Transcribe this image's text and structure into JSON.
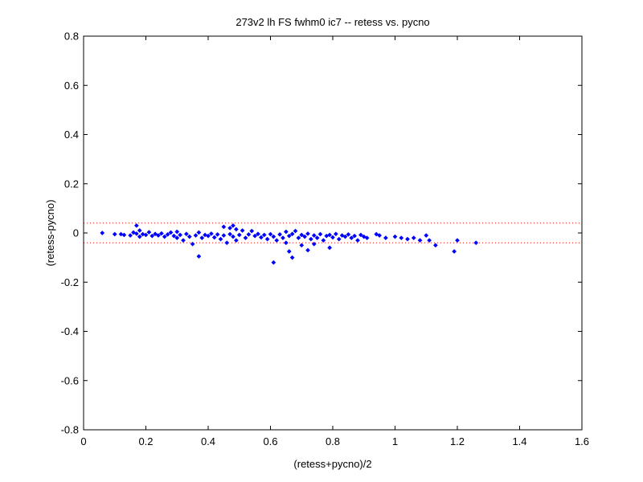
{
  "chart_data": {
    "type": "scatter",
    "title": "273v2 lh FS fwhm0 ic7 -- retess vs. pycno",
    "xlabel": "(retess+pycno)/2",
    "ylabel": "(retess-pycno)",
    "xlim": [
      0,
      1.6
    ],
    "ylim": [
      -0.8,
      0.8
    ],
    "xticks": [
      0,
      0.2,
      0.4,
      0.6,
      0.8,
      1,
      1.2,
      1.4,
      1.6
    ],
    "yticks": [
      -0.8,
      -0.6,
      -0.4,
      -0.2,
      0,
      0.2,
      0.4,
      0.6,
      0.8
    ],
    "xtick_labels": [
      "0",
      "0.2",
      "0.4",
      "0.6",
      "0.8",
      "1",
      "1.2",
      "1.4",
      "1.6"
    ],
    "ytick_labels": [
      "-0.8",
      "-0.6",
      "-0.4",
      "-0.2",
      "0",
      "0.2",
      "0.4",
      "0.6",
      "0.8"
    ],
    "grid": false,
    "marker_color": "#0000ff",
    "reference_line_color": "#ff0000",
    "reference_lines": [
      0.04,
      -0.04
    ],
    "series": [
      {
        "points": [
          [
            0.06,
            0.0
          ],
          [
            0.1,
            -0.005
          ],
          [
            0.12,
            -0.005
          ],
          [
            0.13,
            -0.008
          ],
          [
            0.15,
            -0.01
          ],
          [
            0.16,
            0.002
          ],
          [
            0.17,
            -0.003
          ],
          [
            0.17,
            0.03
          ],
          [
            0.18,
            0.01
          ],
          [
            0.18,
            -0.015
          ],
          [
            0.19,
            -0.005
          ],
          [
            0.2,
            -0.008
          ],
          [
            0.21,
            0.003
          ],
          [
            0.22,
            -0.012
          ],
          [
            0.23,
            -0.004
          ],
          [
            0.24,
            -0.01
          ],
          [
            0.25,
            -0.002
          ],
          [
            0.26,
            -0.015
          ],
          [
            0.27,
            -0.006
          ],
          [
            0.28,
            0.002
          ],
          [
            0.29,
            -0.012
          ],
          [
            0.3,
            -0.02
          ],
          [
            0.3,
            0.005
          ],
          [
            0.31,
            -0.008
          ],
          [
            0.32,
            -0.03
          ],
          [
            0.33,
            -0.004
          ],
          [
            0.34,
            -0.015
          ],
          [
            0.35,
            -0.045
          ],
          [
            0.36,
            -0.01
          ],
          [
            0.37,
            -0.095
          ],
          [
            0.37,
            0.002
          ],
          [
            0.38,
            -0.02
          ],
          [
            0.39,
            -0.008
          ],
          [
            0.4,
            -0.012
          ],
          [
            0.41,
            -0.003
          ],
          [
            0.42,
            -0.018
          ],
          [
            0.43,
            -0.006
          ],
          [
            0.44,
            -0.025
          ],
          [
            0.45,
            0.025
          ],
          [
            0.45,
            -0.01
          ],
          [
            0.46,
            -0.04
          ],
          [
            0.47,
            0.02
          ],
          [
            0.47,
            -0.005
          ],
          [
            0.48,
            0.03
          ],
          [
            0.48,
            -0.015
          ],
          [
            0.49,
            0.015
          ],
          [
            0.49,
            -0.03
          ],
          [
            0.5,
            -0.008
          ],
          [
            0.51,
            0.01
          ],
          [
            0.52,
            -0.02
          ],
          [
            0.53,
            -0.006
          ],
          [
            0.54,
            0.008
          ],
          [
            0.55,
            -0.012
          ],
          [
            0.56,
            -0.004
          ],
          [
            0.57,
            -0.018
          ],
          [
            0.58,
            -0.008
          ],
          [
            0.59,
            -0.025
          ],
          [
            0.6,
            -0.005
          ],
          [
            0.61,
            -0.12
          ],
          [
            0.61,
            -0.015
          ],
          [
            0.62,
            -0.03
          ],
          [
            0.63,
            -0.006
          ],
          [
            0.64,
            -0.02
          ],
          [
            0.65,
            -0.04
          ],
          [
            0.65,
            0.005
          ],
          [
            0.66,
            -0.075
          ],
          [
            0.66,
            -0.012
          ],
          [
            0.67,
            -0.1
          ],
          [
            0.67,
            -0.004
          ],
          [
            0.68,
            0.008
          ],
          [
            0.69,
            -0.02
          ],
          [
            0.7,
            -0.05
          ],
          [
            0.7,
            -0.008
          ],
          [
            0.71,
            -0.015
          ],
          [
            0.72,
            -0.07
          ],
          [
            0.72,
            -0.003
          ],
          [
            0.73,
            -0.025
          ],
          [
            0.74,
            -0.045
          ],
          [
            0.74,
            -0.01
          ],
          [
            0.75,
            -0.02
          ],
          [
            0.76,
            -0.005
          ],
          [
            0.77,
            -0.03
          ],
          [
            0.78,
            -0.012
          ],
          [
            0.79,
            -0.06
          ],
          [
            0.79,
            -0.008
          ],
          [
            0.8,
            -0.018
          ],
          [
            0.81,
            -0.004
          ],
          [
            0.82,
            -0.025
          ],
          [
            0.83,
            -0.01
          ],
          [
            0.84,
            -0.015
          ],
          [
            0.85,
            -0.006
          ],
          [
            0.86,
            -0.02
          ],
          [
            0.87,
            -0.012
          ],
          [
            0.88,
            -0.03
          ],
          [
            0.89,
            -0.008
          ],
          [
            0.9,
            -0.015
          ],
          [
            0.91,
            -0.02
          ],
          [
            0.94,
            -0.005
          ],
          [
            0.95,
            -0.01
          ],
          [
            0.97,
            -0.02
          ],
          [
            1.0,
            -0.015
          ],
          [
            1.02,
            -0.02
          ],
          [
            1.04,
            -0.025
          ],
          [
            1.06,
            -0.02
          ],
          [
            1.08,
            -0.03
          ],
          [
            1.1,
            -0.01
          ],
          [
            1.11,
            -0.03
          ],
          [
            1.13,
            -0.05
          ],
          [
            1.19,
            -0.075
          ],
          [
            1.2,
            -0.03
          ],
          [
            1.26,
            -0.04
          ]
        ]
      }
    ]
  }
}
